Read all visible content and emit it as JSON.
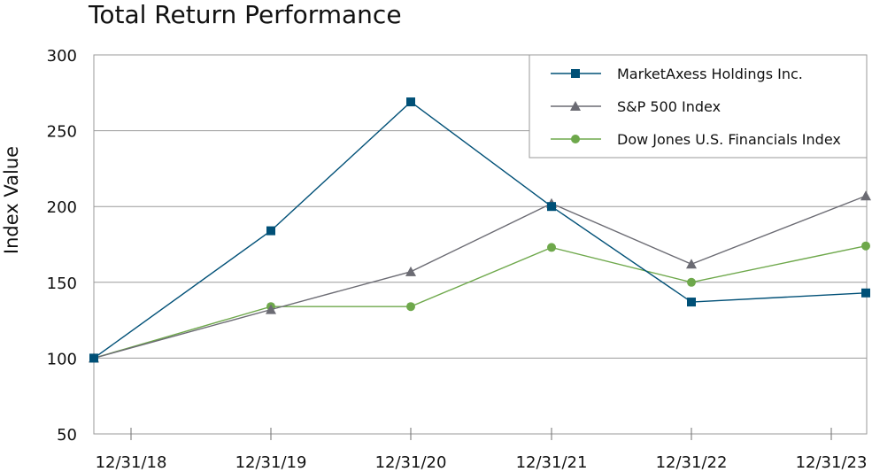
{
  "chart_data": {
    "type": "line",
    "title": "Total Return Performance",
    "xlabel": "",
    "ylabel": "Index Value",
    "categories": [
      "12/31/18",
      "12/31/19",
      "12/31/20",
      "12/31/21",
      "12/31/22",
      "12/31/23"
    ],
    "ylim": [
      50,
      300
    ],
    "yticks": [
      50,
      100,
      150,
      200,
      250,
      300
    ],
    "grid": true,
    "legend_position": "top-right",
    "series": [
      {
        "name": "MarketAxess Holdings Inc.",
        "color": "#005077",
        "marker": "square",
        "values": [
          100,
          184,
          269,
          200,
          137,
          143
        ]
      },
      {
        "name": "S&P 500 Index",
        "color": "#6b6b73",
        "marker": "triangle",
        "values": [
          100,
          132,
          157,
          202,
          162,
          207
        ]
      },
      {
        "name": "Dow Jones U.S. Financials Index",
        "color": "#6ea84b",
        "marker": "circle",
        "values": [
          100,
          134,
          134,
          173,
          150,
          174
        ]
      }
    ]
  }
}
